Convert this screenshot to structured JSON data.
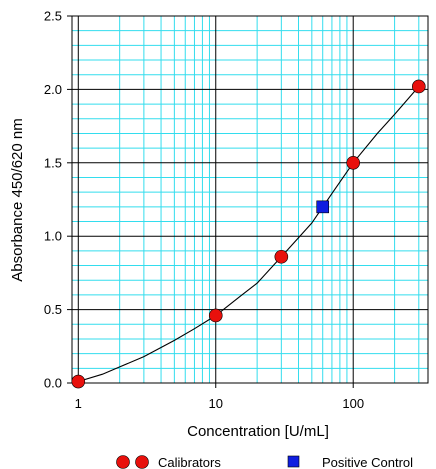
{
  "chart_data": {
    "type": "scatter",
    "xscale": "log",
    "xlim": [
      0.9,
      350
    ],
    "ylim": [
      0,
      2.5
    ],
    "xticks": [
      1,
      10,
      100
    ],
    "xtick_labels": [
      "1",
      "10",
      "100"
    ],
    "yticks": [
      0,
      0.5,
      1.0,
      1.5,
      2.0,
      2.5
    ],
    "ytick_labels": [
      "0.0",
      "0.5",
      "1.0",
      "1.5",
      "2.0",
      "2.5"
    ],
    "xlabel": "Concentration [U/mL]",
    "ylabel": "Absorbance  450/620 nm",
    "grid": true,
    "grid_color": "#33ddee",
    "legend_position": "bottom",
    "series": [
      {
        "name": "Calibrators",
        "marker": "circle",
        "color": "#e8100c",
        "x": [
          1,
          10,
          30,
          100,
          300
        ],
        "y": [
          0.01,
          0.46,
          0.86,
          1.5,
          2.02
        ]
      },
      {
        "name": "Positive Control",
        "marker": "square",
        "color": "#0f1ee0",
        "x": [
          60
        ],
        "y": [
          1.2
        ]
      }
    ],
    "curve": {
      "color": "#000000",
      "x": [
        1,
        1.5,
        2,
        3,
        5,
        7,
        10,
        15,
        20,
        30,
        50,
        70,
        100,
        150,
        200,
        300
      ],
      "y": [
        0.01,
        0.06,
        0.11,
        0.18,
        0.29,
        0.37,
        0.46,
        0.59,
        0.68,
        0.86,
        1.09,
        1.29,
        1.5,
        1.7,
        1.83,
        2.02
      ]
    }
  }
}
